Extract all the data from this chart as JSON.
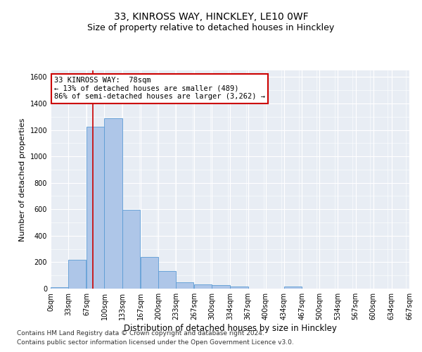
{
  "title_line1": "33, KINROSS WAY, HINCKLEY, LE10 0WF",
  "title_line2": "Size of property relative to detached houses in Hinckley",
  "xlabel": "Distribution of detached houses by size in Hinckley",
  "ylabel": "Number of detached properties",
  "footnote1": "Contains HM Land Registry data © Crown copyright and database right 2024.",
  "footnote2": "Contains public sector information licensed under the Open Government Licence v3.0.",
  "bin_edges": [
    0,
    33,
    67,
    100,
    133,
    167,
    200,
    233,
    267,
    300,
    334,
    367,
    400,
    434,
    467,
    500,
    534,
    567,
    600,
    634,
    667
  ],
  "bar_values": [
    10,
    220,
    1225,
    1290,
    595,
    240,
    135,
    50,
    30,
    25,
    15,
    0,
    0,
    15,
    0,
    0,
    0,
    0,
    0,
    0
  ],
  "bar_color": "#aec6e8",
  "bar_edge_color": "#5b9bd5",
  "property_size": 78,
  "vline_color": "#cc0000",
  "annotation_line1": "33 KINROSS WAY:  78sqm",
  "annotation_line2": "← 13% of detached houses are smaller (489)",
  "annotation_line3": "86% of semi-detached houses are larger (3,262) →",
  "annotation_box_color": "#ffffff",
  "annotation_box_edge_color": "#cc0000",
  "ylim": [
    0,
    1650
  ],
  "yticks": [
    0,
    200,
    400,
    600,
    800,
    1000,
    1200,
    1400,
    1600
  ],
  "background_color": "#e8edf4",
  "grid_color": "#ffffff",
  "title1_fontsize": 10,
  "title2_fontsize": 9,
  "xlabel_fontsize": 8.5,
  "ylabel_fontsize": 8,
  "tick_fontsize": 7,
  "annot_fontsize": 7.5,
  "footnote_fontsize": 6.5
}
